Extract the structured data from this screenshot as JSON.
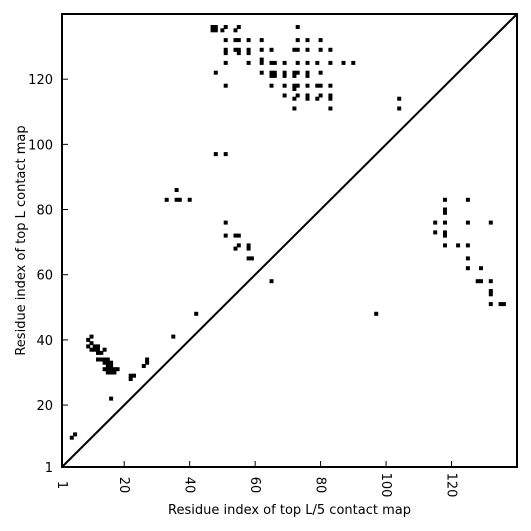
{
  "chart_data": {
    "type": "scatter",
    "title": "",
    "xlabel": "Residue index of top L/5 contact map",
    "ylabel": "Residue index of top L contact map",
    "xlim": [
      1,
      140
    ],
    "ylim": [
      1,
      140
    ],
    "xticks": [
      1,
      20,
      40,
      60,
      80,
      100,
      120
    ],
    "yticks": [
      1,
      20,
      40,
      60,
      80,
      100,
      120
    ],
    "grid": false,
    "diagonal": true,
    "colors": {
      "points": "#000000",
      "frame": "#000000",
      "diagonal": "#000000",
      "background": "#ffffff"
    },
    "series": [
      {
        "marker": "square",
        "points": [
          [
            4,
            10
          ],
          [
            5,
            11
          ],
          [
            9,
            38
          ],
          [
            9,
            40
          ],
          [
            10,
            37
          ],
          [
            10,
            39
          ],
          [
            10,
            41
          ],
          [
            11,
            37
          ],
          [
            11,
            38
          ],
          [
            12,
            36
          ],
          [
            12,
            37
          ],
          [
            12,
            38
          ],
          [
            12,
            34
          ],
          [
            13,
            34
          ],
          [
            13,
            36
          ],
          [
            14,
            33
          ],
          [
            14,
            34
          ],
          [
            14,
            37
          ],
          [
            14,
            31
          ],
          [
            15,
            30
          ],
          [
            15,
            31
          ],
          [
            15,
            32
          ],
          [
            15,
            33
          ],
          [
            15,
            34
          ],
          [
            16,
            30
          ],
          [
            16,
            31
          ],
          [
            16,
            32
          ],
          [
            16,
            33
          ],
          [
            16,
            22
          ],
          [
            17,
            30
          ],
          [
            17,
            31
          ],
          [
            18,
            31
          ],
          [
            22,
            28
          ],
          [
            22,
            29
          ],
          [
            23,
            29
          ],
          [
            26,
            32
          ],
          [
            27,
            33
          ],
          [
            27,
            34
          ],
          [
            33,
            83
          ],
          [
            35,
            41
          ],
          [
            36,
            83
          ],
          [
            36,
            86
          ],
          [
            37,
            83
          ],
          [
            40,
            83
          ],
          [
            42,
            48
          ],
          [
            47,
            135
          ],
          [
            47,
            136
          ],
          [
            48,
            135
          ],
          [
            48,
            136
          ],
          [
            48,
            122
          ],
          [
            48,
            97
          ],
          [
            50,
            135
          ],
          [
            51,
            136
          ],
          [
            51,
            132
          ],
          [
            51,
            129
          ],
          [
            51,
            128
          ],
          [
            51,
            125
          ],
          [
            51,
            118
          ],
          [
            51,
            97
          ],
          [
            51,
            76
          ],
          [
            51,
            72
          ],
          [
            54,
            135
          ],
          [
            55,
            136
          ],
          [
            54,
            132
          ],
          [
            55,
            132
          ],
          [
            54,
            129
          ],
          [
            55,
            129
          ],
          [
            55,
            128
          ],
          [
            54,
            72
          ],
          [
            55,
            72
          ],
          [
            54,
            68
          ],
          [
            55,
            69
          ],
          [
            58,
            132
          ],
          [
            58,
            129
          ],
          [
            58,
            128
          ],
          [
            58,
            125
          ],
          [
            58,
            69
          ],
          [
            58,
            68
          ],
          [
            58,
            65
          ],
          [
            59,
            65
          ],
          [
            62,
            132
          ],
          [
            62,
            129
          ],
          [
            62,
            126
          ],
          [
            62,
            125
          ],
          [
            62,
            122
          ],
          [
            65,
            129
          ],
          [
            65,
            125
          ],
          [
            66,
            125
          ],
          [
            65,
            122
          ],
          [
            66,
            122
          ],
          [
            65,
            121
          ],
          [
            66,
            121
          ],
          [
            65,
            118
          ],
          [
            65,
            58
          ],
          [
            69,
            125
          ],
          [
            69,
            122
          ],
          [
            69,
            121
          ],
          [
            69,
            118
          ],
          [
            69,
            115
          ],
          [
            72,
            129
          ],
          [
            72,
            122
          ],
          [
            72,
            121
          ],
          [
            72,
            118
          ],
          [
            72,
            117
          ],
          [
            72,
            114
          ],
          [
            72,
            111
          ],
          [
            73,
            136
          ],
          [
            73,
            132
          ],
          [
            73,
            129
          ],
          [
            73,
            125
          ],
          [
            73,
            122
          ],
          [
            73,
            118
          ],
          [
            73,
            115
          ],
          [
            76,
            132
          ],
          [
            76,
            129
          ],
          [
            76,
            125
          ],
          [
            76,
            122
          ],
          [
            76,
            121
          ],
          [
            76,
            118
          ],
          [
            76,
            115
          ],
          [
            76,
            114
          ],
          [
            79,
            125
          ],
          [
            79,
            118
          ],
          [
            79,
            114
          ],
          [
            80,
            132
          ],
          [
            80,
            129
          ],
          [
            80,
            122
          ],
          [
            80,
            118
          ],
          [
            80,
            115
          ],
          [
            83,
            129
          ],
          [
            83,
            125
          ],
          [
            83,
            118
          ],
          [
            83,
            115
          ],
          [
            83,
            114
          ],
          [
            83,
            111
          ],
          [
            87,
            125
          ],
          [
            90,
            125
          ],
          [
            97,
            48
          ],
          [
            104,
            114
          ],
          [
            104,
            111
          ],
          [
            115,
            76
          ],
          [
            115,
            73
          ],
          [
            118,
            83
          ],
          [
            118,
            80
          ],
          [
            118,
            79
          ],
          [
            118,
            76
          ],
          [
            118,
            73
          ],
          [
            118,
            72
          ],
          [
            118,
            69
          ],
          [
            122,
            69
          ],
          [
            125,
            83
          ],
          [
            125,
            76
          ],
          [
            125,
            69
          ],
          [
            125,
            65
          ],
          [
            125,
            62
          ],
          [
            128,
            58
          ],
          [
            129,
            62
          ],
          [
            129,
            58
          ],
          [
            132,
            76
          ],
          [
            132,
            58
          ],
          [
            132,
            55
          ],
          [
            132,
            54
          ],
          [
            132,
            51
          ],
          [
            135,
            51
          ],
          [
            136,
            51
          ]
        ]
      }
    ]
  }
}
